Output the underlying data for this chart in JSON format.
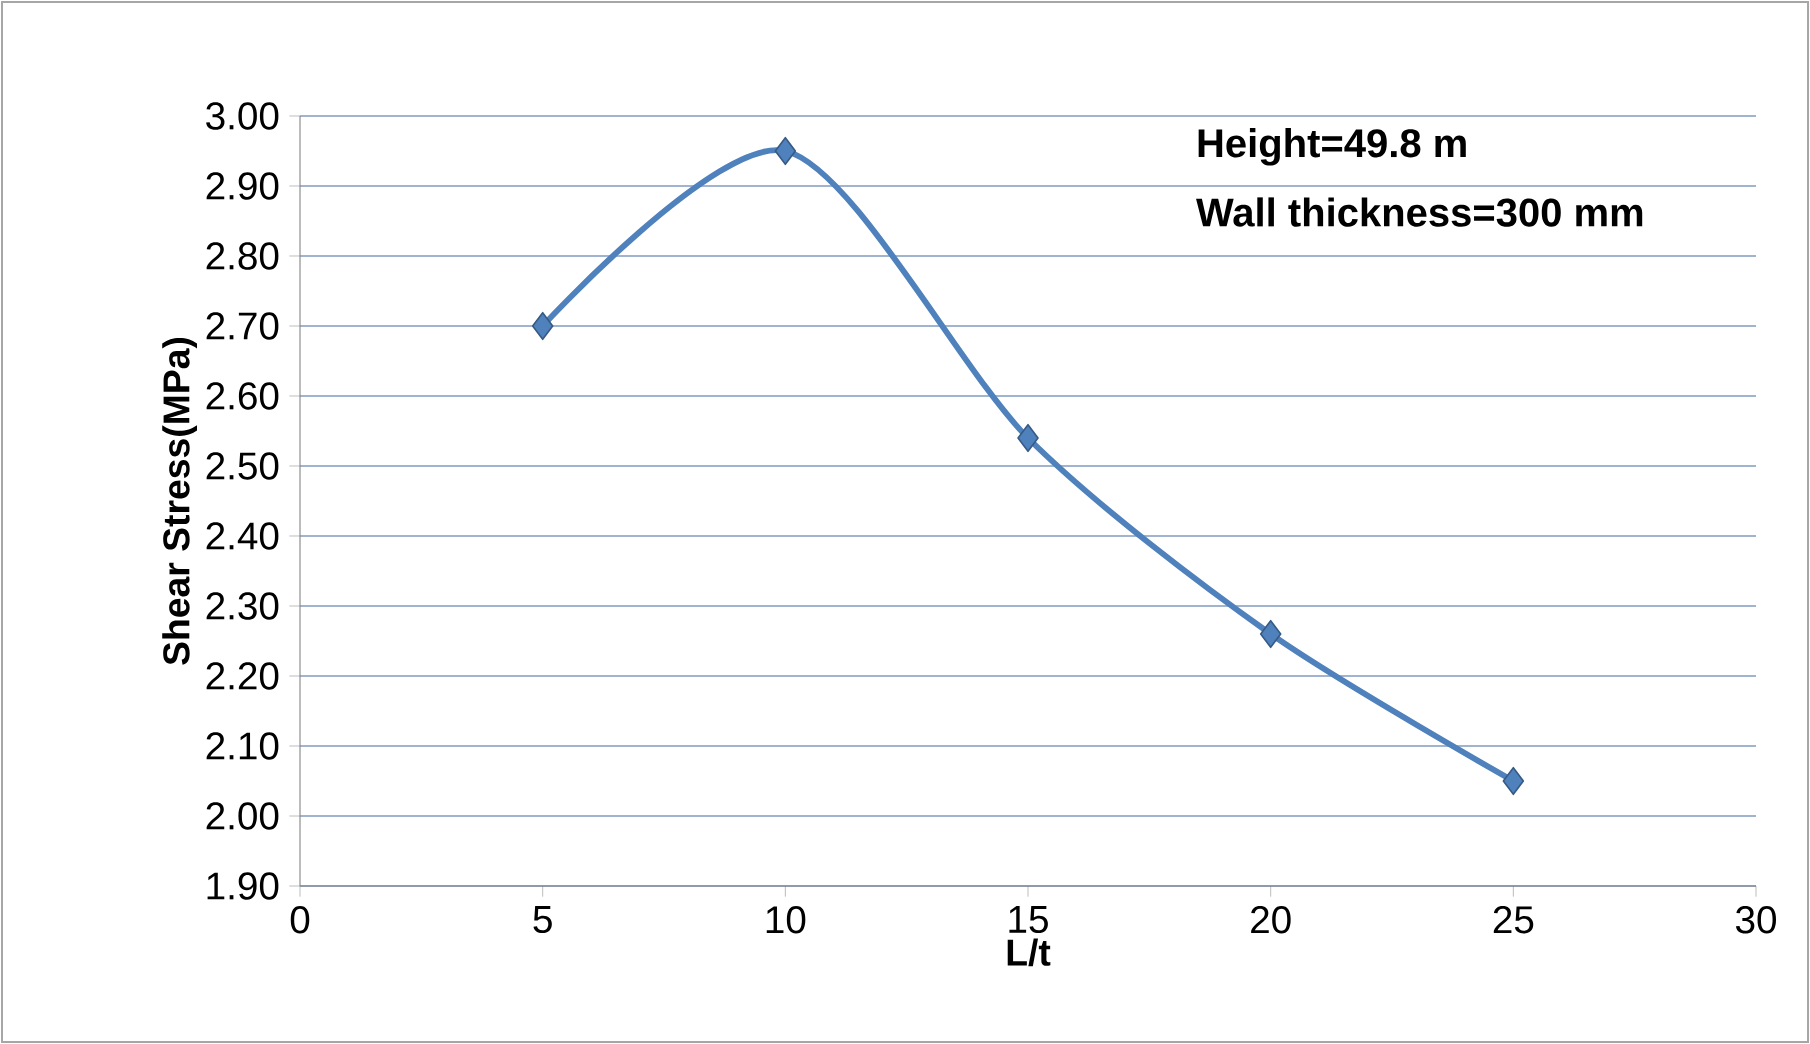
{
  "chart_data": {
    "type": "line",
    "xlabel": "L/t",
    "ylabel": "Shear Stress(MPa)",
    "annotations": [
      "Height=49.8 m",
      "Wall thickness=300 mm"
    ],
    "x": [
      5,
      10,
      15,
      20,
      25
    ],
    "series": [
      {
        "color": "#4f81bd",
        "values": [
          2.7,
          2.95,
          2.54,
          2.26,
          2.05
        ]
      }
    ],
    "xlim": [
      0,
      30
    ],
    "xticks": [
      0,
      5,
      10,
      15,
      20,
      25,
      30
    ],
    "ylim": [
      1.9,
      3.0
    ],
    "yticks": [
      {
        "value": 1.9,
        "label": "1.90"
      },
      {
        "value": 2.0,
        "label": "2.00"
      },
      {
        "value": 2.1,
        "label": "2.10"
      },
      {
        "value": 2.2,
        "label": "2.20"
      },
      {
        "value": 2.3,
        "label": "2.30"
      },
      {
        "value": 2.4,
        "label": "2.40"
      },
      {
        "value": 2.5,
        "label": "2.50"
      },
      {
        "value": 2.6,
        "label": "2.60"
      },
      {
        "value": 2.7,
        "label": "2.70"
      },
      {
        "value": 2.8,
        "label": "2.80"
      },
      {
        "value": 2.9,
        "label": "2.90"
      },
      {
        "value": 3.0,
        "label": "3.00"
      }
    ],
    "grid": "y",
    "marker": "diamond",
    "line_style": "solid"
  }
}
